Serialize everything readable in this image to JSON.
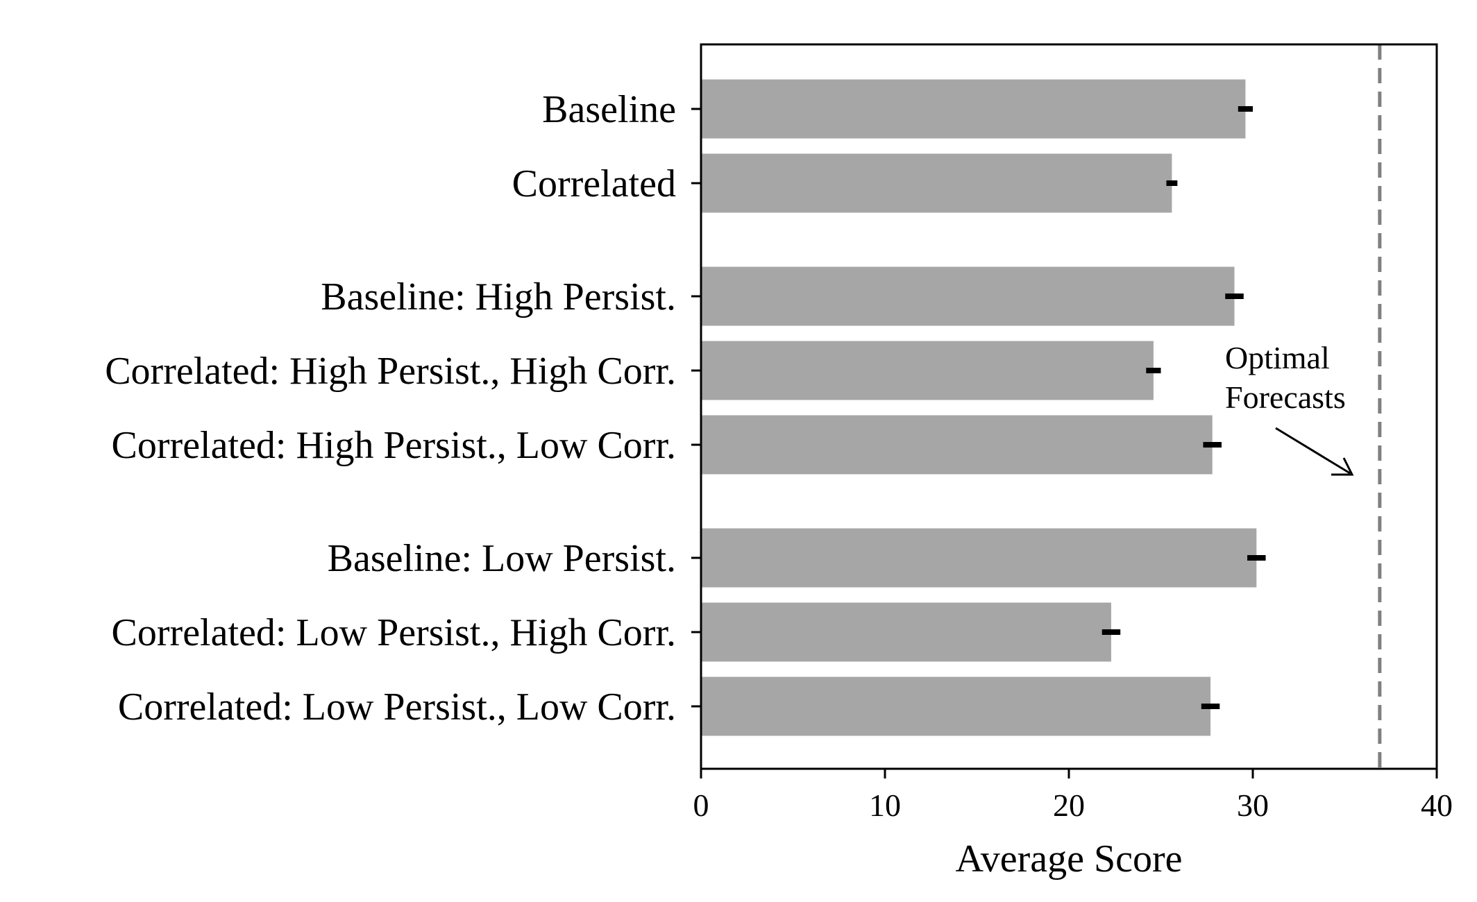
{
  "chart_data": {
    "type": "bar",
    "orientation": "horizontal",
    "categories": [
      "Baseline",
      "Correlated",
      "Baseline: High Persist.",
      "Correlated: High Persist., High Corr.",
      "Correlated: High Persist., Low Corr.",
      "Baseline: Low Persist.",
      "Correlated: Low Persist., High Corr.",
      "Correlated: Low Persist., Low Corr."
    ],
    "groups": [
      [
        0,
        1
      ],
      [
        2,
        3,
        4
      ],
      [
        5,
        6,
        7
      ]
    ],
    "values": [
      29.6,
      25.6,
      29.0,
      24.6,
      27.8,
      30.2,
      22.3,
      27.7
    ],
    "errors": [
      [
        29.2,
        30.0
      ],
      [
        25.3,
        25.9
      ],
      [
        28.5,
        29.5
      ],
      [
        24.2,
        25.0
      ],
      [
        27.3,
        28.3
      ],
      [
        29.7,
        30.7
      ],
      [
        21.8,
        22.8
      ],
      [
        27.2,
        28.2
      ]
    ],
    "xlabel": "Average Score",
    "xlim": [
      0,
      40
    ],
    "xticks": [
      0,
      10,
      20,
      30,
      40
    ],
    "reference_line": {
      "value": 36.9,
      "style": "dashed",
      "annotation": [
        "Optimal",
        "Forecasts"
      ]
    },
    "grid": false,
    "colors": {
      "bar": "#a6a6a6",
      "error_bar": "#000000",
      "reference_line": "#808080",
      "axis": "#000000"
    }
  }
}
